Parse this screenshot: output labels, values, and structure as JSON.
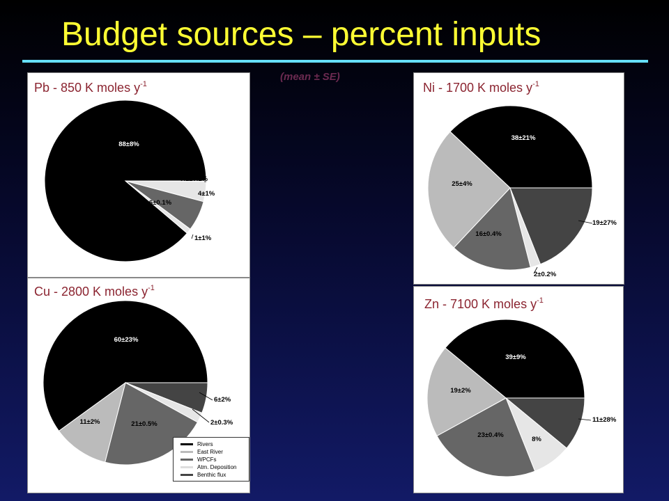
{
  "slide": {
    "title": "Budget sources – percent inputs",
    "subtitle": "(mean ± SE)"
  },
  "colors": {
    "Rivers": "#000000",
    "East River": "#bbbbbb",
    "WPCFs": "#666666",
    "Atm. Deposition": "#e6e6e6",
    "Benthic flux": "#444444"
  },
  "legend": {
    "items": [
      "Rivers",
      "East River",
      "WPCFs",
      "Atm. Deposition",
      "Benthic flux"
    ]
  },
  "chart_data": [
    {
      "type": "pie",
      "title": "Pb - 850 K moles y",
      "title_sup": "-1",
      "slices": [
        {
          "category": "Rivers",
          "value": 88,
          "label": "88±8%"
        },
        {
          "category": "Benthic flux",
          "value": 0.1,
          "label": "0.1±0.1%"
        },
        {
          "category": "Atm. Deposition",
          "value": 4,
          "label": "4±1%"
        },
        {
          "category": "WPCFs",
          "value": 6,
          "label": "6±0.1%"
        },
        {
          "category": "Atm. Deposition",
          "value": 1,
          "label": "1±1%"
        }
      ]
    },
    {
      "type": "pie",
      "title": "Ni - 1700 K moles y",
      "title_sup": "-1",
      "slices": [
        {
          "category": "Rivers",
          "value": 38,
          "label": "38±21%"
        },
        {
          "category": "Benthic flux",
          "value": 19,
          "label": "19±27%"
        },
        {
          "category": "Atm. Deposition",
          "value": 2,
          "label": "2±0.2%"
        },
        {
          "category": "WPCFs",
          "value": 16,
          "label": "16±0.4%"
        },
        {
          "category": "East River",
          "value": 25,
          "label": "25±4%"
        }
      ]
    },
    {
      "type": "pie",
      "title": "Cu - 2800 K moles y",
      "title_sup": "-1",
      "slices": [
        {
          "category": "Rivers",
          "value": 60,
          "label": "60±23%"
        },
        {
          "category": "Benthic flux",
          "value": 6,
          "label": "6±2%"
        },
        {
          "category": "Atm. Deposition",
          "value": 2,
          "label": "2±0.3%"
        },
        {
          "category": "WPCFs",
          "value": 21,
          "label": "21±0.5%"
        },
        {
          "category": "East River",
          "value": 11,
          "label": "11±2%"
        }
      ]
    },
    {
      "type": "pie",
      "title": "Zn - 7100 K moles y",
      "title_sup": "-1",
      "slices": [
        {
          "category": "Rivers",
          "value": 39,
          "label": "39±9%"
        },
        {
          "category": "Benthic flux",
          "value": 11,
          "label": "11±28%"
        },
        {
          "category": "Atm. Deposition",
          "value": 8,
          "label": "8%"
        },
        {
          "category": "WPCFs",
          "value": 23,
          "label": "23±0.4%"
        },
        {
          "category": "East River",
          "value": 19,
          "label": "19±2%"
        }
      ]
    }
  ]
}
